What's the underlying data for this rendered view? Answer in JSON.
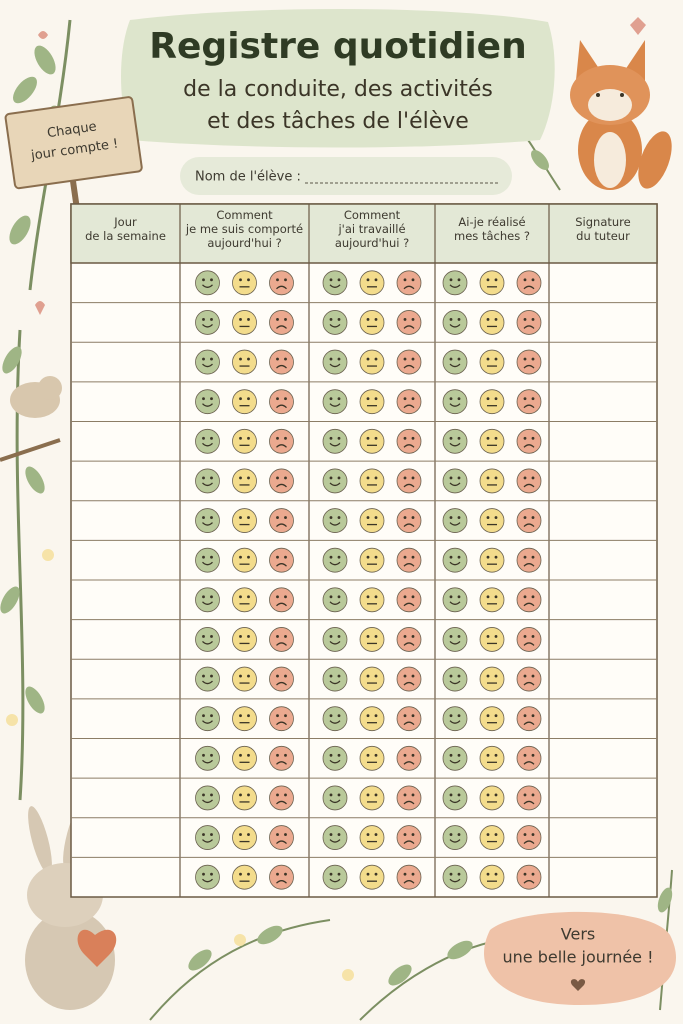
{
  "title": "Registre quotidien",
  "subtitle": [
    "de la conduite, des activités",
    "et des tâches de l'élève"
  ],
  "sign": [
    "Chaque",
    "jour compte !"
  ],
  "name_field": "Nom de l'élève :",
  "table": {
    "header": [
      [
        "Jour",
        "de la semaine"
      ],
      [
        "Comment",
        "je me suis comporté",
        "aujourd'hui ?"
      ],
      [
        "Comment",
        "j'ai travaillé",
        "aujourd'hui ?"
      ],
      [
        "Ai-je réalisé",
        "mes tâches ?"
      ],
      [
        "Signature",
        "du tuteur"
      ]
    ]
  },
  "footer_bubble": [
    "Vers",
    "une belle journée !"
  ]
}
